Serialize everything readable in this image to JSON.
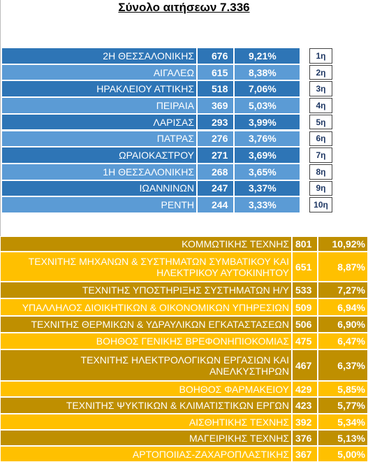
{
  "title": "Σύνολο αιτήσεων 7.336",
  "top": {
    "rows": [
      [
        "2Η ΘΕΣΣΑΛΟΝΙΚΗΣ",
        "676",
        "9,21%",
        "1η"
      ],
      [
        "ΑΙΓΑΛΕΩ",
        "615",
        "8,38%",
        "2η"
      ],
      [
        "ΗΡΑΚΛΕΙΟΥ ΑΤΤΙΚΗΣ",
        "518",
        "7,06%",
        "3η"
      ],
      [
        "ΠΕΙΡΑΙΑ",
        "369",
        "5,03%",
        "4η"
      ],
      [
        "ΛΑΡΙΣΑΣ",
        "293",
        "3,99%",
        "5η"
      ],
      [
        "ΠΑΤΡΑΣ",
        "276",
        "3,76%",
        "6η"
      ],
      [
        "ΩΡΑΙΟΚΑΣΤΡΟΥ",
        "271",
        "3,69%",
        "7η"
      ],
      [
        "1Η ΘΕΣΣΑΛΟΝΙΚΗΣ",
        "268",
        "3,65%",
        "8η"
      ],
      [
        "ΙΩΑΝΝΙΝΩΝ",
        "247",
        "3,37%",
        "9η"
      ],
      [
        "ΡΕΝΤΗ",
        "244",
        "3,33%",
        "10η"
      ]
    ]
  },
  "bottom": {
    "rows": [
      [
        "ΚΟΜΜΩΤΙΚΗΣ ΤΕΧΝΗΣ",
        "801",
        "10,92%"
      ],
      [
        "ΤΕΧΝΙΤΗΣ ΜΗΧΑΝΩΝ & ΣΥΣΤΗΜΑΤΩΝ ΣΥΜΒΑΤΙΚΟΥ ΚΑΙ ΗΛΕΚΤΡΙΚΟΥ ΑΥΤΟΚΙΝΗΤΟΥ",
        "651",
        "8,87%"
      ],
      [
        "ΤΕΧΝΙΤΗΣ ΥΠΟΣΤΗΡΙΞΗΣ ΣΥΣΤΗΜΑΤΩΝ Η/Υ",
        "533",
        "7,27%"
      ],
      [
        "ΥΠΑΛΛΗΛΟΣ ΔΙΟΙΚΗΤΙΚΩΝ & ΟΙΚΟΝΟΜΙΚΩΝ ΥΠΗΡΕΣΙΩΝ",
        "509",
        "6,94%"
      ],
      [
        "ΤΕΧΝΙΤΗΣ ΘΕΡΜΙΚΩΝ & ΥΔΡΑΥΛΙΚΩΝ ΕΓΚΑΤΑΣΤΑΣΕΩΝ",
        "506",
        "6,90%"
      ],
      [
        "ΒΟΗΘΟΣ ΓΕΝΙΚΗΣ ΒΡΕΦΟΝΗΠΙΟΚΟΜΙΑΣ",
        "475",
        "6,47%"
      ],
      [
        "ΤΕΧΝΙΤΗΣ ΗΛΕΚΤΡΟΛΟΓΙΚΩΝ ΕΡΓΑΣΙΩΝ ΚΑΙ ΑΝΕΛΚΥΣΤΗΡΩΝ",
        "467",
        "6,37%"
      ],
      [
        "ΒΟΗΘΟΣ ΦΑΡΜΑΚΕΙΟΥ",
        "429",
        "5,85%"
      ],
      [
        "ΤΕΧΝΙΤΗΣ ΨΥΚΤΙΚΩΝ & ΚΛΙΜΑΤΙΣΤΙΚΩΝ ΕΡΓΩΝ",
        "423",
        "5,77%"
      ],
      [
        "ΑΙΣΘΗΤΙΚΗΣ ΤΕΧΝΗΣ",
        "392",
        "5,34%"
      ],
      [
        "ΜΑΓΕΙΡΙΚΗΣ ΤΕΧΝΗΣ",
        "376",
        "5,13%"
      ],
      [
        "ΑΡΤΟΠΟΙΙΑΣ-ΖΑΧΑΡΟΠΛΑΣΤΙΚΗΣ",
        "367",
        "5,00%"
      ]
    ]
  }
}
